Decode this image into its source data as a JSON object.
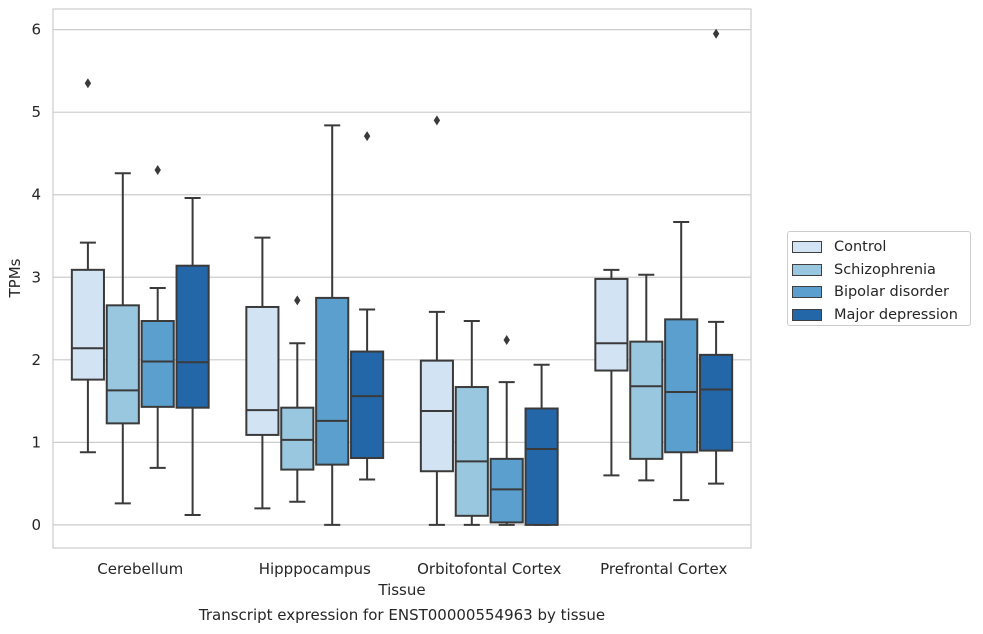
{
  "caption": "Transcript expression for ENST00000554963 by tissue",
  "chart_data": {
    "type": "box",
    "xlabel": "Tissue",
    "ylabel": "TPMs",
    "ylim": [
      -0.28,
      6.25
    ],
    "yticks": [
      0,
      1,
      2,
      3,
      4,
      5,
      6
    ],
    "grid": true,
    "legend_position": "right",
    "categories": [
      "Cerebellum",
      "Hipppocampus",
      "Orbitofontal Cortex",
      "Prefrontal Cortex"
    ],
    "series": [
      {
        "name": "Control",
        "color": "#d2e3f3",
        "boxes": [
          {
            "whislo": 0.88,
            "q1": 1.76,
            "med": 2.14,
            "q3": 3.09,
            "whishi": 3.42,
            "fliers": [
              5.35
            ]
          },
          {
            "whislo": 0.2,
            "q1": 1.09,
            "med": 1.39,
            "q3": 2.64,
            "whishi": 3.48,
            "fliers": []
          },
          {
            "whislo": 0.0,
            "q1": 0.65,
            "med": 1.38,
            "q3": 1.99,
            "whishi": 2.58,
            "fliers": [
              4.9
            ]
          },
          {
            "whislo": 0.6,
            "q1": 1.87,
            "med": 2.2,
            "q3": 2.98,
            "whishi": 3.09,
            "fliers": []
          }
        ]
      },
      {
        "name": "Schizophrenia",
        "color": "#9ac7e0",
        "boxes": [
          {
            "whislo": 0.26,
            "q1": 1.23,
            "med": 1.63,
            "q3": 2.66,
            "whishi": 4.26,
            "fliers": []
          },
          {
            "whislo": 0.28,
            "q1": 0.67,
            "med": 1.03,
            "q3": 1.42,
            "whishi": 2.2,
            "fliers": [
              2.72
            ]
          },
          {
            "whislo": 0.0,
            "q1": 0.11,
            "med": 0.77,
            "q3": 1.67,
            "whishi": 2.47,
            "fliers": []
          },
          {
            "whislo": 0.54,
            "q1": 0.8,
            "med": 1.68,
            "q3": 2.22,
            "whishi": 3.03,
            "fliers": []
          }
        ]
      },
      {
        "name": "Bipolar disorder",
        "color": "#5a9fcd",
        "boxes": [
          {
            "whislo": 0.69,
            "q1": 1.43,
            "med": 1.98,
            "q3": 2.47,
            "whishi": 2.87,
            "fliers": [
              4.3
            ]
          },
          {
            "whislo": 0.0,
            "q1": 0.73,
            "med": 1.26,
            "q3": 2.75,
            "whishi": 4.84,
            "fliers": []
          },
          {
            "whislo": 0.0,
            "q1": 0.03,
            "med": 0.43,
            "q3": 0.8,
            "whishi": 1.73,
            "fliers": [
              2.24
            ]
          },
          {
            "whislo": 0.3,
            "q1": 0.88,
            "med": 1.61,
            "q3": 2.49,
            "whishi": 3.67,
            "fliers": []
          }
        ]
      },
      {
        "name": "Major depression",
        "color": "#2467a9",
        "boxes": [
          {
            "whislo": 0.12,
            "q1": 1.42,
            "med": 1.97,
            "q3": 3.14,
            "whishi": 3.96,
            "fliers": []
          },
          {
            "whislo": 0.55,
            "q1": 0.81,
            "med": 1.56,
            "q3": 2.1,
            "whishi": 2.61,
            "fliers": [
              4.71
            ]
          },
          {
            "whislo": 0.0,
            "q1": 0.0,
            "med": 0.92,
            "q3": 1.41,
            "whishi": 1.94,
            "fliers": []
          },
          {
            "whislo": 0.5,
            "q1": 0.9,
            "med": 1.64,
            "q3": 2.06,
            "whishi": 2.46,
            "fliers": [
              5.95
            ]
          }
        ]
      }
    ]
  }
}
